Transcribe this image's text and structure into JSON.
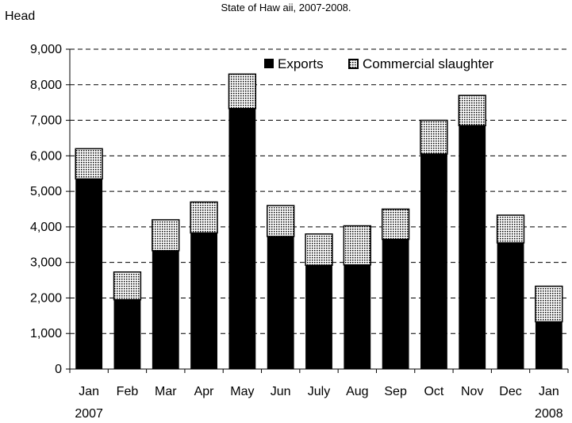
{
  "chart_data": {
    "type": "bar",
    "stacked": true,
    "subtitle": "State of Haw aii, 2007-2008.",
    "ylabel": "Head",
    "xlabel": "",
    "ylim": [
      0,
      9000
    ],
    "y_ticks": [
      "0",
      "1,000",
      "2,000",
      "3,000",
      "4,000",
      "5,000",
      "6,000",
      "7,000",
      "8,000",
      "9,000"
    ],
    "categories": [
      "Jan",
      "Feb",
      "Mar",
      "Apr",
      "May",
      "Jun",
      "July",
      "Aug",
      "Sep",
      "Oct",
      "Nov",
      "Dec",
      "Jan"
    ],
    "year_labels": {
      "first": "2007",
      "last": "2008"
    },
    "grid": "horizontal-dashed",
    "legend": "top-right",
    "series": [
      {
        "name": "Exports",
        "color": "#000000",
        "values": [
          5350,
          1950,
          3330,
          3830,
          7330,
          3730,
          2920,
          2930,
          3650,
          6050,
          6850,
          3550,
          1330
        ]
      },
      {
        "name": "Commercial slaughter",
        "color": "dotted",
        "values": [
          850,
          780,
          870,
          870,
          970,
          870,
          880,
          1100,
          850,
          950,
          850,
          780,
          1000
        ]
      }
    ]
  }
}
